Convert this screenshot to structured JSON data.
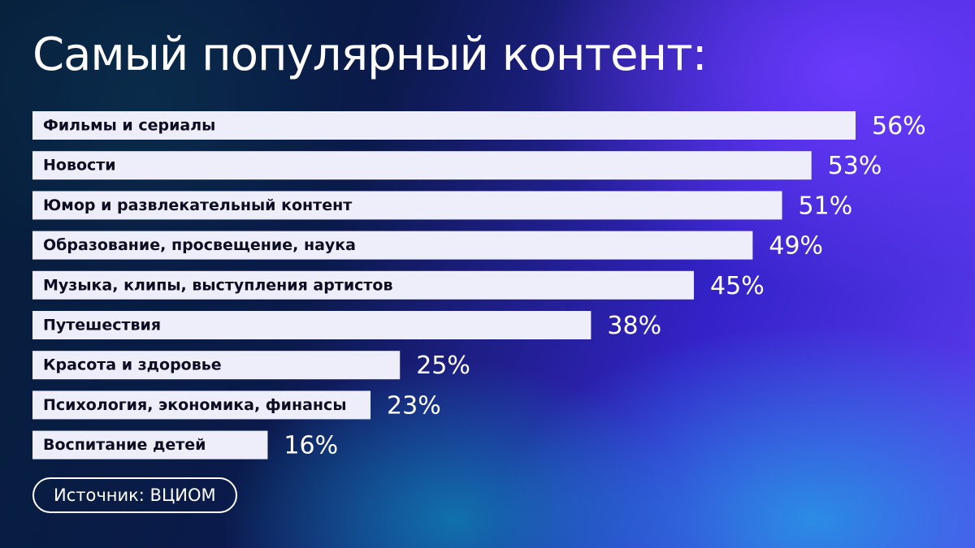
{
  "title": "Самый популярный контент:",
  "source": "Источник: ВЦИОМ",
  "colors": {
    "bar": "#eeeefa",
    "bar_text": "#0c0c22",
    "value_text": "#ffffff"
  },
  "chart_data": {
    "type": "bar",
    "orientation": "horizontal",
    "title": "Самый популярный контент:",
    "categories": [
      "Фильмы и сериалы",
      "Новости",
      "Юмор и развлекательный контент",
      "Образование, просвещение, наука",
      "Музыка, клипы, выступления артистов",
      "Путешествия",
      "Красота и здоровье",
      "Психология, экономика, финансы",
      "Воспитание детей"
    ],
    "values": [
      56,
      53,
      51,
      49,
      45,
      38,
      25,
      23,
      16
    ],
    "value_labels": [
      "56%",
      "53%",
      "51%",
      "49%",
      "45%",
      "38%",
      "25%",
      "23%",
      "16%"
    ],
    "unit": "%",
    "xlim": [
      0,
      100
    ],
    "grid": false
  }
}
